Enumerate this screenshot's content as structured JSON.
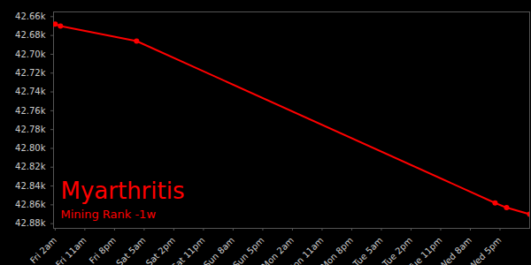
{
  "chart_data": {
    "type": "line",
    "title": "Myarthritis",
    "subtitle": "Mining Rank -1w",
    "color": "#ff0000",
    "marker": "circle",
    "x": [
      0,
      1.6,
      24.7,
      133.5,
      137,
      144
    ],
    "values": [
      42668,
      42670,
      42686,
      42858,
      42863,
      42870
    ],
    "xlim": [
      -0.5,
      144
    ],
    "xticks": [
      {
        "value": 0,
        "label": "Fri 2am"
      },
      {
        "value": 9,
        "label": "Fri 11am"
      },
      {
        "value": 18,
        "label": "Fri 8pm"
      },
      {
        "value": 27,
        "label": "Sat 5am"
      },
      {
        "value": 36,
        "label": "Sat 2pm"
      },
      {
        "value": 45,
        "label": "Sat 11pm"
      },
      {
        "value": 54,
        "label": "Sun 8am"
      },
      {
        "value": 63,
        "label": "Sun 5pm"
      },
      {
        "value": 72,
        "label": "Mon 2am"
      },
      {
        "value": 81,
        "label": "Mon 11am"
      },
      {
        "value": 90,
        "label": "Mon 8pm"
      },
      {
        "value": 99,
        "label": "Tue 5am"
      },
      {
        "value": 108,
        "label": "Tue 2pm"
      },
      {
        "value": 117,
        "label": "Tue 11pm"
      },
      {
        "value": 126,
        "label": "Wed 8am"
      },
      {
        "value": 135,
        "label": "Wed 5pm"
      }
    ],
    "ylim": [
      42655,
      42885
    ],
    "yticks": [
      {
        "value": 42660,
        "label": "42.66k"
      },
      {
        "value": 42680,
        "label": "42.68k"
      },
      {
        "value": 42700,
        "label": "42.70k"
      },
      {
        "value": 42720,
        "label": "42.72k"
      },
      {
        "value": 42740,
        "label": "42.74k"
      },
      {
        "value": 42760,
        "label": "42.76k"
      },
      {
        "value": 42780,
        "label": "42.78k"
      },
      {
        "value": 42800,
        "label": "42.80k"
      },
      {
        "value": 42820,
        "label": "42.82k"
      },
      {
        "value": 42840,
        "label": "42.84k"
      },
      {
        "value": 42860,
        "label": "42.86k"
      },
      {
        "value": 42880,
        "label": "42.88k"
      }
    ],
    "grid": false
  }
}
